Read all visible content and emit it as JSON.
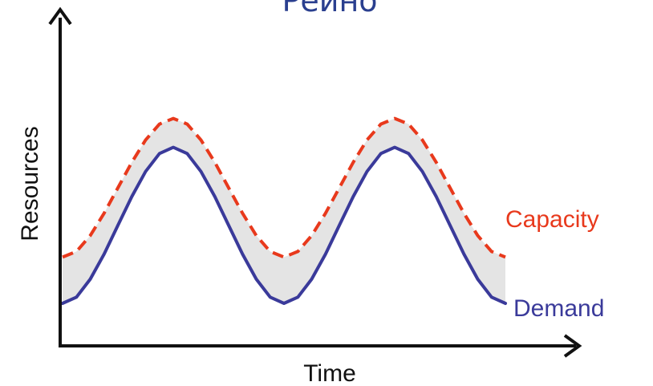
{
  "chart_data": {
    "type": "line",
    "title": "Реино",
    "xlabel": "Time",
    "ylabel": "Resources",
    "x": [
      0,
      0.25,
      0.5,
      0.75,
      1,
      1.25,
      1.5,
      1.75,
      2,
      2.25,
      2.5,
      2.75,
      3,
      3.25,
      3.5,
      3.75,
      4,
      4.25,
      4.5,
      4.75,
      5,
      5.25,
      5.5,
      5.75,
      6,
      6.25,
      6.5,
      6.75,
      7,
      7.25,
      7.5,
      7.75,
      8
    ],
    "series": [
      {
        "name": "Capacity",
        "style": "dashed",
        "values": [
          0.32,
          0.359,
          0.469,
          0.624,
          0.8,
          0.976,
          1.131,
          1.241,
          1.28,
          1.241,
          1.131,
          0.976,
          0.8,
          0.624,
          0.469,
          0.359,
          0.32,
          0.359,
          0.469,
          0.624,
          0.8,
          0.976,
          1.131,
          1.241,
          1.28,
          1.241,
          1.131,
          0.976,
          0.8,
          0.624,
          0.469,
          0.359,
          0.32
        ]
      },
      {
        "name": "Demand",
        "style": "solid",
        "values": [
          0,
          0.043,
          0.167,
          0.341,
          0.54,
          0.739,
          0.913,
          1.037,
          1.08,
          1.037,
          0.913,
          0.739,
          0.54,
          0.341,
          0.167,
          0.043,
          0,
          0.043,
          0.167,
          0.341,
          0.54,
          0.739,
          0.913,
          1.037,
          1.08,
          1.037,
          0.913,
          0.739,
          0.54,
          0.341,
          0.167,
          0.043,
          0
        ]
      }
    ],
    "shaded_gap": true,
    "grid": false,
    "colors": {
      "title": "#2a3f8f",
      "capacity": "#e8391c",
      "demand": "#3a3a9a",
      "gap_fill": "#e4e4e4",
      "axis": "#111111"
    }
  }
}
